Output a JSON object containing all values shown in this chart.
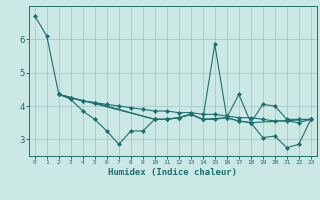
{
  "title": "",
  "xlabel": "Humidex (Indice chaleur)",
  "ylabel": "",
  "background_color": "#cce8e5",
  "grid_color": "#aacfcc",
  "line_color": "#1a7070",
  "xlim": [
    -0.5,
    23.5
  ],
  "ylim": [
    2.5,
    7.0
  ],
  "yticks": [
    3,
    4,
    5,
    6
  ],
  "xticks": [
    0,
    1,
    2,
    3,
    4,
    5,
    6,
    7,
    8,
    9,
    10,
    11,
    12,
    13,
    14,
    15,
    16,
    17,
    18,
    19,
    20,
    21,
    22,
    23
  ],
  "series": [
    {
      "x": [
        0,
        1,
        2,
        3,
        4,
        5,
        6,
        7,
        8,
        9,
        10,
        11,
        12,
        13,
        14,
        15,
        16,
        17,
        18,
        19,
        20,
        21,
        22,
        23
      ],
      "y": [
        6.7,
        6.1,
        4.35,
        4.2,
        3.85,
        3.6,
        3.25,
        2.85,
        3.25,
        3.25,
        3.6,
        3.6,
        3.65,
        3.75,
        3.6,
        5.85,
        3.65,
        4.35,
        3.5,
        3.05,
        3.1,
        2.75,
        2.85,
        3.6
      ]
    },
    {
      "x": [
        2,
        3,
        4,
        5,
        6,
        7,
        8,
        9,
        10,
        11,
        12,
        13,
        14,
        15,
        16,
        17,
        18,
        19,
        20,
        21,
        22,
        23
      ],
      "y": [
        4.35,
        4.25,
        4.15,
        4.1,
        4.05,
        4.0,
        3.95,
        3.9,
        3.85,
        3.85,
        3.8,
        3.8,
        3.75,
        3.75,
        3.7,
        3.65,
        3.65,
        3.6,
        3.55,
        3.55,
        3.5,
        3.6
      ]
    },
    {
      "x": [
        2,
        3,
        4,
        5,
        10,
        11,
        12,
        13,
        14,
        15,
        16,
        17,
        18,
        19,
        20,
        21,
        22,
        23
      ],
      "y": [
        4.35,
        4.25,
        4.15,
        4.1,
        3.6,
        3.6,
        3.65,
        3.75,
        3.6,
        3.6,
        3.65,
        3.55,
        3.5,
        4.05,
        4.0,
        3.6,
        3.6,
        3.6
      ]
    },
    {
      "x": [
        2,
        10,
        11,
        12,
        13,
        14,
        16,
        17,
        18,
        23
      ],
      "y": [
        4.35,
        3.6,
        3.6,
        3.65,
        3.75,
        3.6,
        3.65,
        3.55,
        3.5,
        3.6
      ]
    }
  ]
}
